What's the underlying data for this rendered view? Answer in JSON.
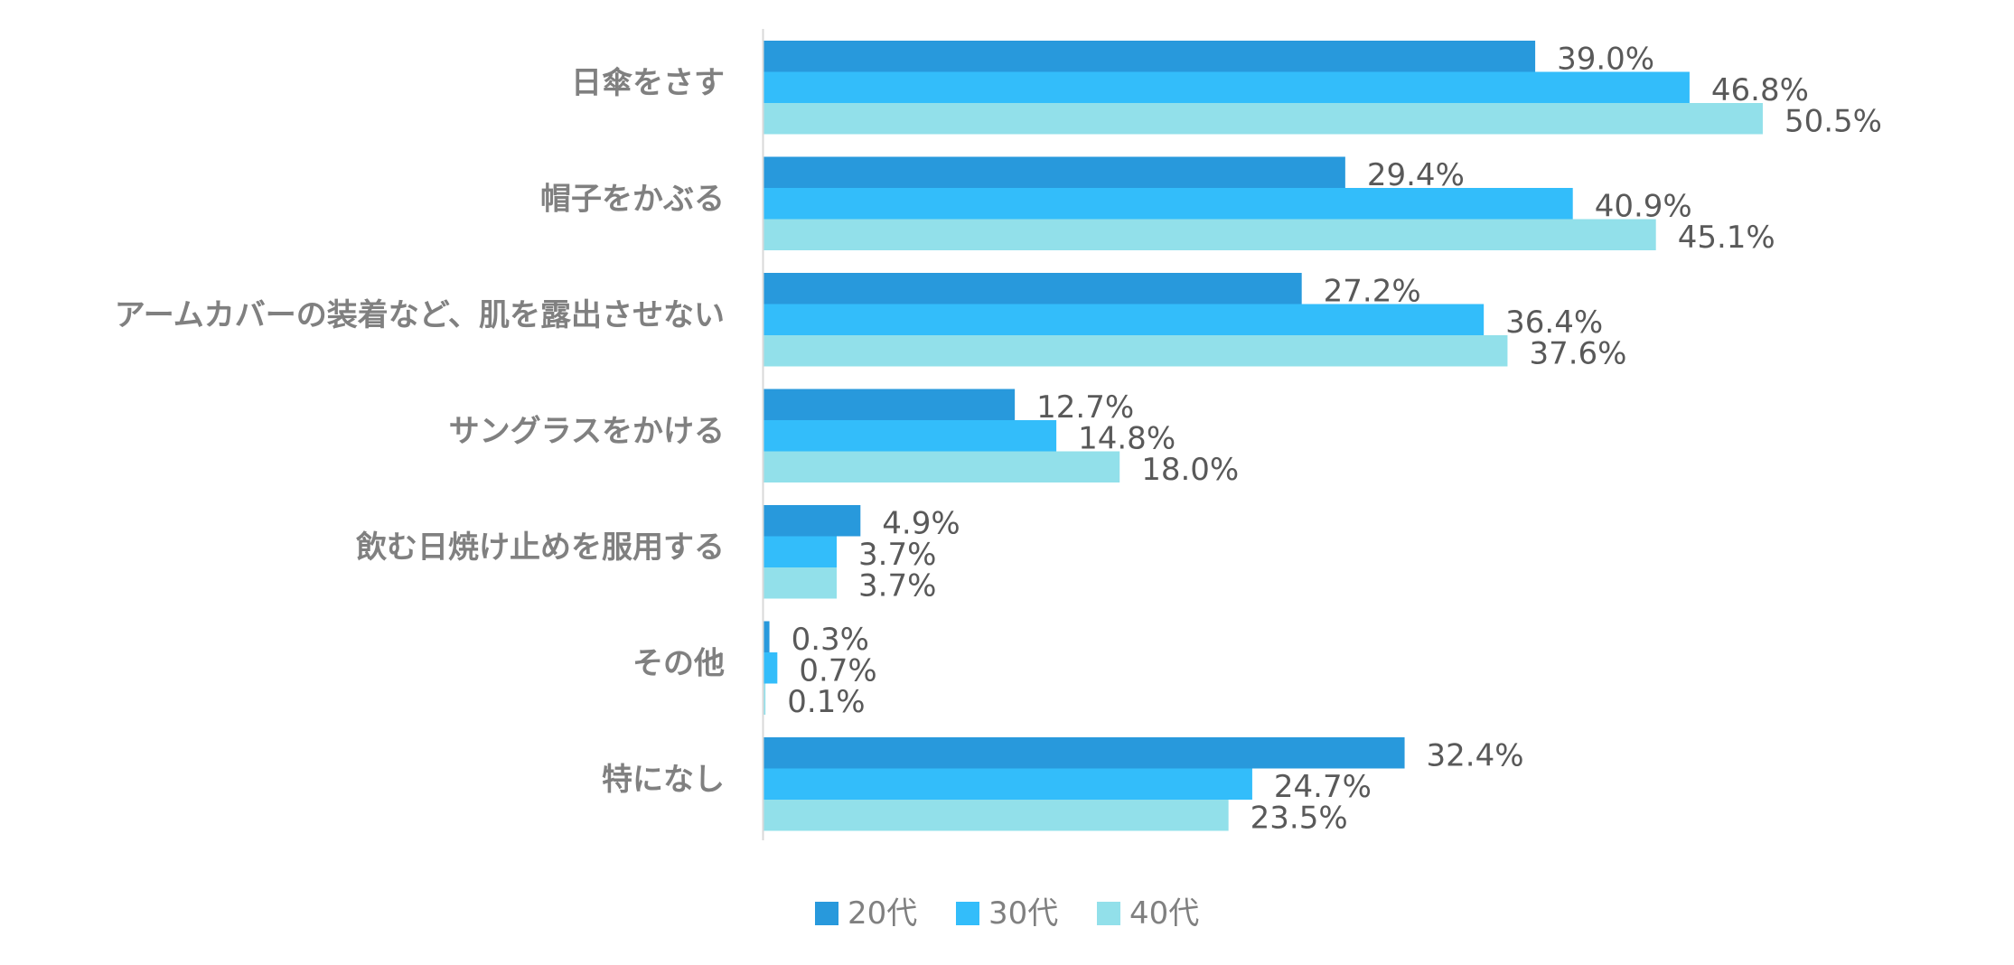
{
  "chart_data": {
    "type": "bar",
    "orientation": "horizontal",
    "title": "",
    "xlabel": "",
    "ylabel": "",
    "xlim": [
      0,
      60
    ],
    "grid": false,
    "legend": "bottom",
    "value_suffix": "%",
    "categories": [
      "日傘をさす",
      "帽子をかぶる",
      "アームカバーの装着など、肌を露出させない",
      "サングラスをかける",
      "飲む日焼け止めを服用する",
      "その他",
      "特になし"
    ],
    "series": [
      {
        "name": "20代",
        "color": "#2899dc",
        "values": [
          39.0,
          29.4,
          27.2,
          12.7,
          4.9,
          0.3,
          32.4
        ]
      },
      {
        "name": "30代",
        "color": "#33bdfa",
        "values": [
          46.8,
          40.9,
          36.4,
          14.8,
          3.7,
          0.7,
          24.7
        ]
      },
      {
        "name": "40代",
        "color": "#92e0ea",
        "values": [
          50.5,
          45.1,
          37.6,
          18.0,
          3.7,
          0.1,
          23.5
        ]
      }
    ]
  }
}
